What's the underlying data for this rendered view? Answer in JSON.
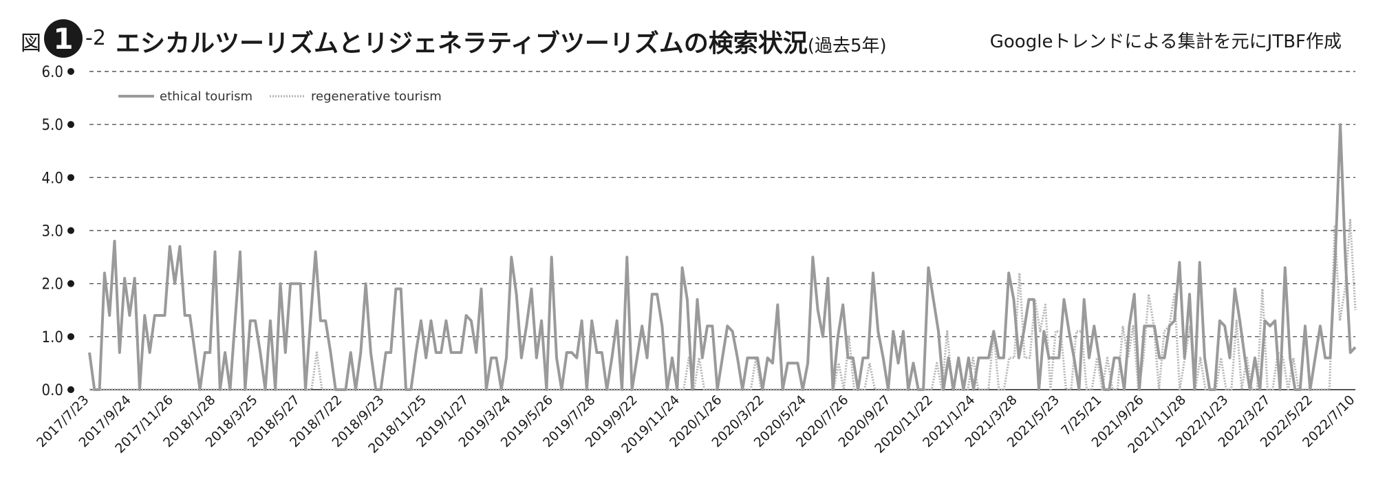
{
  "header": {
    "fig_prefix": "図",
    "fig_number": "1",
    "fig_suffix": "-2",
    "title": "エシカルツーリズムとリジェネラティブツーリズムの検索状況",
    "title_paren": "(過去5年)",
    "source": "Googleトレンドによる集計を元にJTBF作成"
  },
  "chart_data": {
    "type": "line",
    "title": "エシカルツーリズムとリジェネラティブツーリズムの検索状況(過去5年)",
    "xlabel": "",
    "ylabel": "",
    "ylim": [
      0,
      6
    ],
    "yticks": [
      "0.0",
      "1.0",
      "2.0",
      "3.0",
      "4.0",
      "5.0",
      "6.0"
    ],
    "grid": true,
    "legend_position": "top-left",
    "xtick_labels": [
      "2017/7/23",
      "2017/9/24",
      "2017/11/26",
      "2018/1/28",
      "2018/3/25",
      "2018/5/27",
      "2018/7/22",
      "2018/9/23",
      "2018/11/25",
      "2019/1/27",
      "2019/3/24",
      "2019/5/26",
      "2019/7/28",
      "2019/9/22",
      "2019/11/24",
      "2020/1/26",
      "2020/3/22",
      "2020/5/24",
      "2020/7/26",
      "2020/9/27",
      "2020/11/22",
      "2021/1/24",
      "2021/3/28",
      "2021/5/23",
      "7/25/21",
      "2021/9/26",
      "2021/11/28",
      "2022/1/23",
      "2022/3/27",
      "2022/5/22",
      "2022/7/10"
    ],
    "series": [
      {
        "name": "ethical tourism",
        "color": "#9a9a9a",
        "style": "solid",
        "values": [
          0.7,
          0,
          0,
          2.2,
          1.4,
          2.8,
          0.7,
          2.1,
          1.4,
          2.1,
          0,
          1.4,
          0.7,
          1.4,
          1.4,
          1.4,
          2.7,
          2.0,
          2.7,
          1.4,
          1.4,
          0.7,
          0,
          0.7,
          0.7,
          2.6,
          0,
          0.7,
          0,
          1.3,
          2.6,
          0,
          1.3,
          1.3,
          0.7,
          0,
          1.3,
          0,
          2.0,
          0.7,
          2.0,
          2.0,
          2.0,
          0,
          1.3,
          2.6,
          1.3,
          1.3,
          0.7,
          0,
          0,
          0,
          0.7,
          0,
          0.7,
          2.0,
          0.7,
          0,
          0,
          0.7,
          0.7,
          1.9,
          1.9,
          0,
          0,
          0.7,
          1.3,
          0.6,
          1.3,
          0.7,
          0.7,
          1.3,
          0.7,
          0.7,
          0.7,
          1.4,
          1.3,
          0.7,
          1.9,
          0,
          0.6,
          0.6,
          0,
          0.6,
          2.5,
          1.8,
          0.6,
          1.2,
          1.9,
          0.6,
          1.3,
          0,
          2.5,
          0.6,
          0,
          0.7,
          0.7,
          0.6,
          1.3,
          0,
          1.3,
          0.7,
          0.7,
          0,
          0.6,
          1.3,
          0,
          2.5,
          0,
          0.6,
          1.2,
          0.6,
          1.8,
          1.8,
          1.2,
          0,
          0.6,
          0,
          2.3,
          1.7,
          0,
          1.7,
          0.6,
          1.2,
          1.2,
          0,
          0.6,
          1.2,
          1.1,
          0.6,
          0,
          0.6,
          0.6,
          0.6,
          0,
          0.6,
          0.5,
          1.6,
          0,
          0.5,
          0.5,
          0.5,
          0,
          0.5,
          2.5,
          1.5,
          1.0,
          2.1,
          0,
          1.0,
          1.6,
          0.6,
          0.6,
          0,
          0.6,
          0.6,
          2.2,
          1.1,
          0.6,
          0,
          1.1,
          0.5,
          1.1,
          0,
          0.5,
          0,
          0,
          2.3,
          1.7,
          1.1,
          0,
          0.6,
          0,
          0.6,
          0,
          0.6,
          0,
          0.6,
          0.6,
          0.6,
          1.1,
          0.6,
          0.6,
          2.2,
          1.7,
          0.6,
          1.1,
          1.7,
          1.7,
          0,
          1.1,
          0.6,
          0.6,
          0.6,
          1.7,
          1.1,
          0.6,
          0,
          1.7,
          0.6,
          1.2,
          0.6,
          0,
          0,
          0.6,
          0.6,
          0,
          1.2,
          1.8,
          0,
          1.2,
          1.2,
          1.2,
          0.6,
          0.6,
          1.2,
          1.3,
          2.4,
          0.6,
          1.8,
          0,
          2.4,
          0.6,
          0,
          0,
          1.3,
          1.2,
          0.6,
          1.9,
          1.3,
          0.6,
          0,
          0.6,
          0,
          1.3,
          1.2,
          1.3,
          0,
          2.3,
          0.6,
          0,
          0,
          1.2,
          0,
          0.6,
          1.2,
          0.6,
          0.6,
          2.5,
          5.0,
          2.5,
          0.7,
          0.8
        ]
      },
      {
        "name": "regenerative tourism",
        "color": "#b5b5b5",
        "style": "dotted",
        "values": [
          0,
          0,
          0,
          0,
          0,
          0,
          0,
          0,
          0,
          0,
          0,
          0,
          0,
          0,
          0,
          0,
          0,
          0,
          0,
          0,
          0,
          0,
          0,
          0,
          0,
          0,
          0,
          0,
          0,
          0,
          0,
          0,
          0,
          0,
          0,
          0,
          0,
          0,
          0,
          0,
          0,
          0,
          0,
          0,
          0.7,
          0,
          0,
          0,
          0,
          0,
          0,
          0,
          0,
          0,
          0,
          0,
          0,
          0,
          0,
          0,
          0,
          0,
          0,
          0,
          0,
          0,
          0,
          0,
          0,
          0,
          0,
          0,
          0,
          0,
          0,
          0,
          0,
          0,
          0,
          0,
          0,
          0,
          0,
          0,
          0,
          0,
          0,
          0,
          0,
          0,
          0,
          0,
          0,
          0,
          0,
          0,
          0,
          0,
          0,
          0,
          0,
          0,
          0,
          0,
          0,
          0,
          0,
          0,
          0,
          0,
          0,
          0,
          0,
          0,
          0,
          0,
          0.6,
          0,
          0.6,
          0,
          0,
          0,
          0,
          0,
          0,
          0,
          0,
          0,
          0,
          0.6,
          0,
          0,
          0,
          0,
          0,
          0,
          0,
          0,
          0,
          0,
          0,
          0,
          0,
          0,
          0,
          0.5,
          0,
          1.0,
          0,
          0,
          0,
          0.5,
          0,
          0,
          0,
          0,
          0,
          0,
          0,
          0,
          0,
          0,
          0,
          0,
          0.5,
          0,
          1.1,
          0,
          0,
          0,
          0,
          0.6,
          0,
          0,
          0,
          1.1,
          0,
          0,
          0.6,
          0.6,
          2.2,
          0.6,
          0.6,
          1.7,
          1.1,
          1.6,
          0,
          1.1,
          1.1,
          0,
          0,
          1.1,
          1.1,
          0,
          0,
          0.6,
          0,
          0.6,
          0,
          0,
          1.2,
          0.6,
          1.2,
          0,
          0.6,
          1.8,
          1.2,
          0,
          1.1,
          1.2,
          1.8,
          0,
          0.6,
          1.2,
          0,
          0.6,
          0,
          0,
          0,
          0.6,
          0,
          0,
          1.3,
          0,
          0.6,
          0,
          0,
          1.9,
          0,
          0,
          0.7,
          0.6,
          0,
          0.6,
          0,
          0,
          0,
          0,
          0,
          0,
          0,
          3.1,
          1.3,
          1.9,
          3.2,
          1.5
        ]
      }
    ]
  }
}
